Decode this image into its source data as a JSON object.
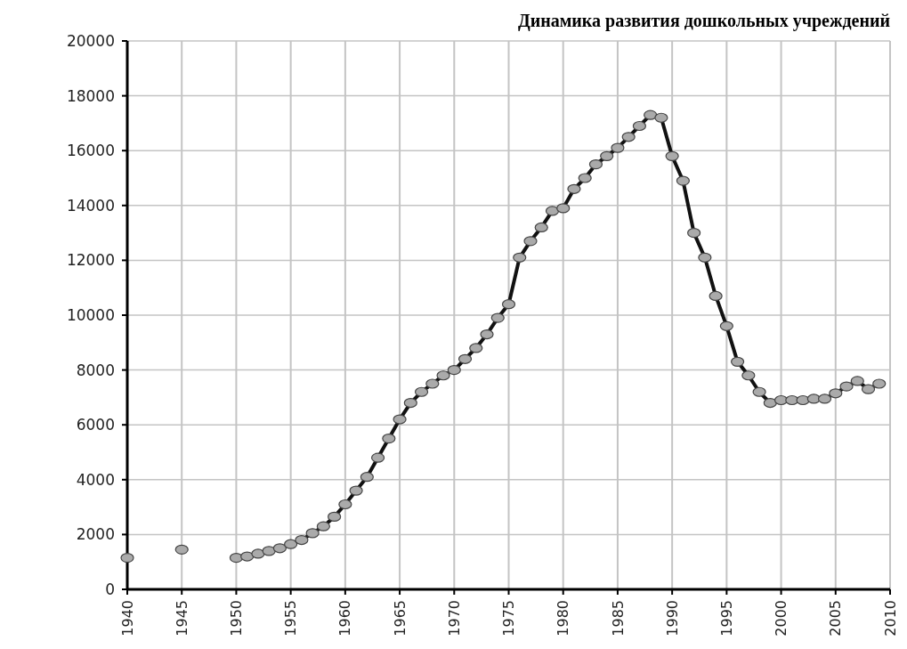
{
  "chart_data": {
    "type": "line",
    "title": "Динамика развития дошкольных учреждений",
    "xlim": [
      1940,
      2010
    ],
    "xticks": [
      1940,
      1945,
      1950,
      1955,
      1960,
      1965,
      1970,
      1975,
      1980,
      1985,
      1990,
      1995,
      2000,
      2005,
      2010
    ],
    "ylim": [
      0,
      20000
    ],
    "yticks": [
      0,
      2000,
      4000,
      6000,
      8000,
      10000,
      12000,
      14000,
      16000,
      18000,
      20000
    ],
    "grid": true,
    "marker": "circle",
    "line_style": "solid",
    "series": [
      {
        "type": "scatter",
        "color": "#aaaaaa",
        "x": [
          1940,
          1945
        ],
        "values": [
          1150,
          1450
        ]
      },
      {
        "color": "#111111",
        "x": [
          1950,
          1951,
          1952,
          1953,
          1954,
          1955,
          1956,
          1957,
          1958,
          1959,
          1960,
          1961,
          1962,
          1963,
          1964,
          1965,
          1966,
          1967,
          1968,
          1969,
          1970,
          1971,
          1972,
          1973,
          1974,
          1975,
          1976,
          1977,
          1978,
          1979,
          1980,
          1981,
          1982,
          1983,
          1984,
          1985,
          1986,
          1987,
          1988,
          1989,
          1990,
          1991,
          1992,
          1993,
          1994,
          1995,
          1996,
          1997,
          1998,
          1999,
          2000,
          2001,
          2002,
          2003,
          2004,
          2005,
          2006,
          2007,
          2008,
          2009
        ],
        "values": [
          1150,
          1200,
          1300,
          1400,
          1500,
          1650,
          1800,
          2050,
          2300,
          2650,
          3100,
          3600,
          4100,
          4800,
          5500,
          6200,
          6800,
          7200,
          7500,
          7800,
          8000,
          8400,
          8800,
          9300,
          9900,
          10400,
          12100,
          12700,
          13200,
          13800,
          13900,
          14600,
          15000,
          15500,
          15800,
          16100,
          16500,
          16900,
          17300,
          17200,
          15800,
          14900,
          13000,
          12100,
          10700,
          9600,
          8300,
          7800,
          7200,
          6800,
          6900,
          6900,
          6900,
          6950,
          6950,
          7150,
          7400,
          7600,
          7300,
          7500
        ]
      }
    ]
  }
}
